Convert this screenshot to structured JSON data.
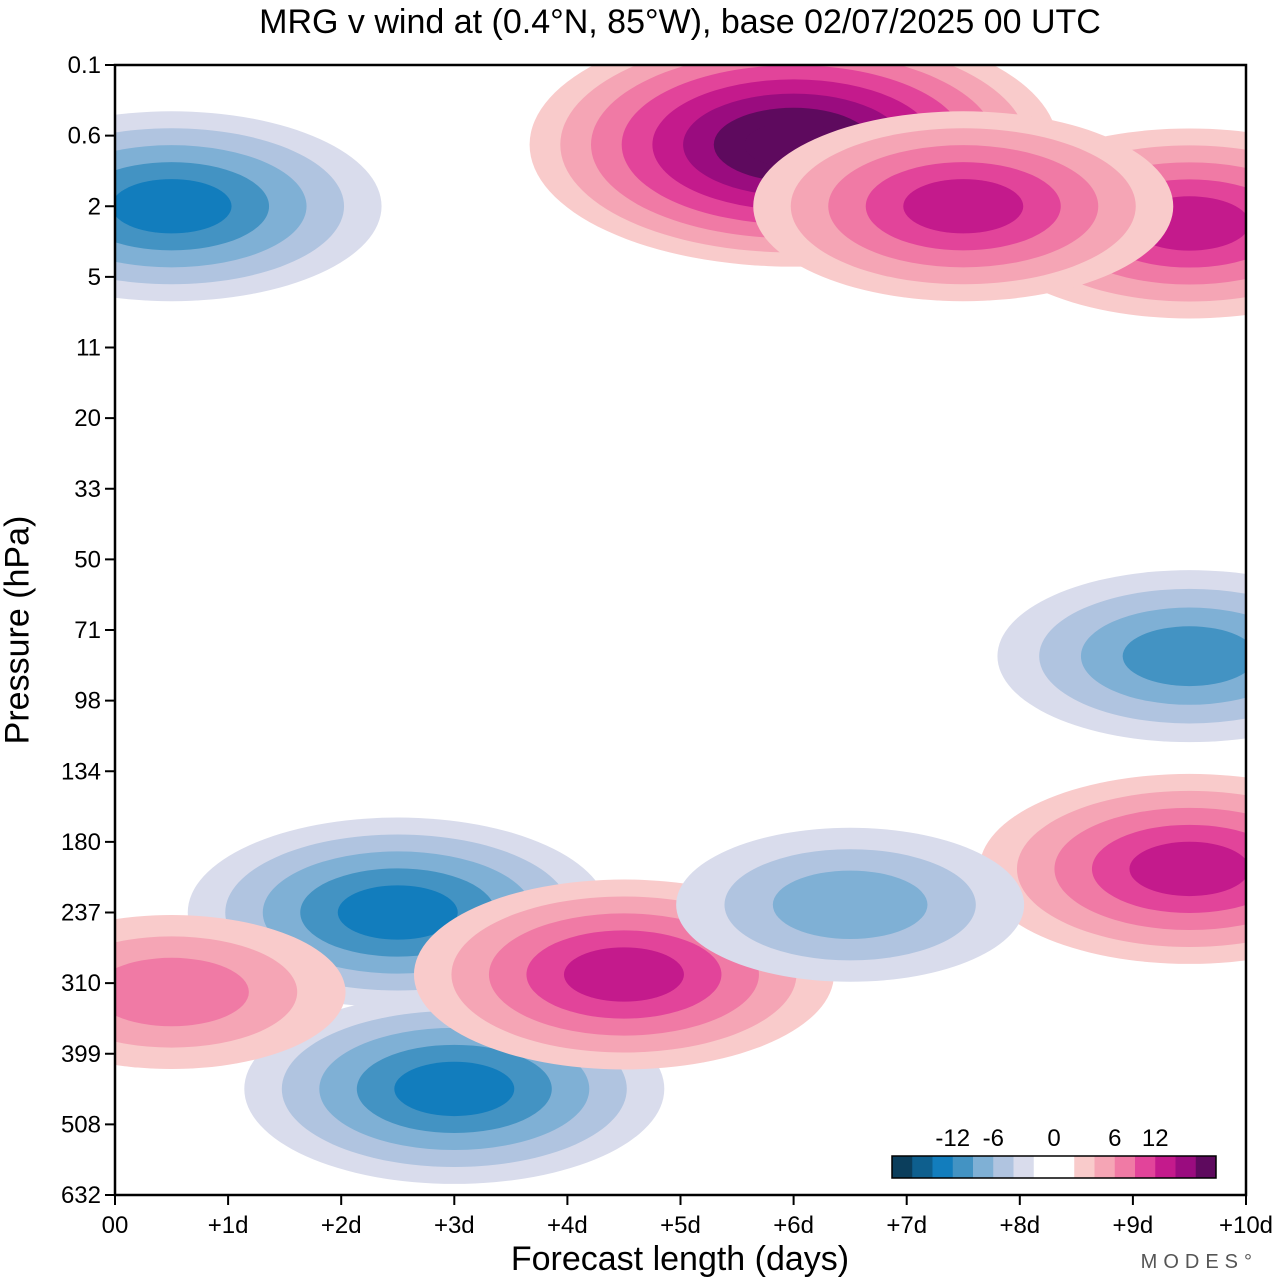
{
  "chart_data": {
    "type": "heatmap",
    "title": "MRG v wind at (0.4°N, 85°W),  base 02/07/2025  00 UTC",
    "xlabel": "Forecast length (days)",
    "ylabel": "Pressure (hPa)",
    "x_ticks": [
      "00",
      "+1d",
      "+2d",
      "+3d",
      "+4d",
      "+5d",
      "+6d",
      "+7d",
      "+8d",
      "+9d",
      "+10d"
    ],
    "y_ticks": [
      "0.1",
      "0.6",
      "2",
      "5",
      "11",
      "20",
      "33",
      "50",
      "71",
      "98",
      "134",
      "180",
      "237",
      "310",
      "399",
      "508",
      "632"
    ],
    "xlim_days": [
      0,
      10
    ],
    "y_scale": "log",
    "colorbar": {
      "labels": [
        "-12",
        "-6",
        "0",
        "6",
        "12"
      ],
      "colors": [
        "#0b3e5c",
        "#0e5f8e",
        "#127dbd",
        "#4393c3",
        "#7fb0d5",
        "#b0c4e0",
        "#d9dcec",
        "#ffffff",
        "#ffffff",
        "#f9cbcb",
        "#f5a5b5",
        "#f07aa5",
        "#e2449a",
        "#c41a8c",
        "#9a0c7f",
        "#5e0a5e"
      ]
    },
    "features": [
      {
        "day": 2.5,
        "pressure": 237,
        "value": -9
      },
      {
        "day": 3.0,
        "pressure": 450,
        "value": -9
      },
      {
        "day": 4.5,
        "pressure": 300,
        "value": 9
      },
      {
        "day": 6.0,
        "pressure": 0.7,
        "value": 15
      },
      {
        "day": 9.5,
        "pressure": 200,
        "value": 9
      },
      {
        "day": 0.5,
        "pressure": 2.0,
        "value": -10
      },
      {
        "day": 9.5,
        "pressure": 80,
        "value": -8
      },
      {
        "day": 6.5,
        "pressure": 230,
        "value": -6
      },
      {
        "day": 0.5,
        "pressure": 320,
        "value": 6
      },
      {
        "day": 9.5,
        "pressure": 2.5,
        "value": 9
      },
      {
        "day": 7.5,
        "pressure": 2.0,
        "value": 9
      }
    ]
  },
  "brand": "MODES°"
}
